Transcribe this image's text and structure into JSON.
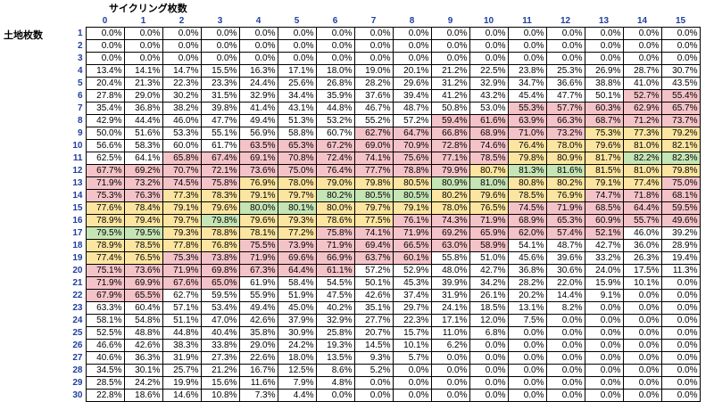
{
  "header": {
    "cycling_title": "サイクリング枚数",
    "land_title": "土地枚数"
  },
  "columns": [
    "0",
    "1",
    "2",
    "3",
    "4",
    "5",
    "6",
    "7",
    "8",
    "9",
    "10",
    "11",
    "12",
    "13",
    "14",
    "15"
  ],
  "rows": [
    {
      "label": "1",
      "values": [
        "0.0%",
        "0.0%",
        "0.0%",
        "0.0%",
        "0.0%",
        "0.0%",
        "0.0%",
        "0.0%",
        "0.0%",
        "0.0%",
        "0.0%",
        "0.0%",
        "0.0%",
        "0.0%",
        "0.0%",
        "0.0%"
      ]
    },
    {
      "label": "2",
      "values": [
        "0.0%",
        "0.0%",
        "0.0%",
        "0.0%",
        "0.0%",
        "0.0%",
        "0.0%",
        "0.0%",
        "0.0%",
        "0.0%",
        "0.0%",
        "0.0%",
        "0.0%",
        "0.0%",
        "0.0%",
        "0.0%"
      ]
    },
    {
      "label": "3",
      "values": [
        "0.0%",
        "0.0%",
        "0.0%",
        "0.0%",
        "0.0%",
        "0.0%",
        "0.0%",
        "0.0%",
        "0.0%",
        "0.0%",
        "0.0%",
        "0.0%",
        "0.0%",
        "0.0%",
        "0.0%",
        "0.0%"
      ]
    },
    {
      "label": "4",
      "values": [
        "13.4%",
        "14.1%",
        "14.7%",
        "15.5%",
        "16.3%",
        "17.1%",
        "18.0%",
        "19.0%",
        "20.1%",
        "21.2%",
        "22.5%",
        "23.8%",
        "25.3%",
        "26.9%",
        "28.7%",
        "30.7%"
      ]
    },
    {
      "label": "5",
      "values": [
        "20.4%",
        "21.3%",
        "22.3%",
        "23.3%",
        "24.4%",
        "25.6%",
        "26.8%",
        "28.2%",
        "29.6%",
        "31.2%",
        "32.9%",
        "34.7%",
        "36.6%",
        "38.8%",
        "41.0%",
        "43.5%"
      ]
    },
    {
      "label": "6",
      "values": [
        "27.8%",
        "29.0%",
        "30.2%",
        "31.5%",
        "32.9%",
        "34.4%",
        "35.9%",
        "37.6%",
        "39.4%",
        "41.2%",
        "43.2%",
        "45.4%",
        "47.7%",
        "50.1%",
        "52.7%",
        "55.4%"
      ]
    },
    {
      "label": "7",
      "values": [
        "35.4%",
        "36.8%",
        "38.2%",
        "39.8%",
        "41.4%",
        "43.1%",
        "44.8%",
        "46.7%",
        "48.7%",
        "50.8%",
        "53.0%",
        "55.3%",
        "57.7%",
        "60.3%",
        "62.9%",
        "65.7%"
      ]
    },
    {
      "label": "8",
      "values": [
        "42.9%",
        "44.4%",
        "46.0%",
        "47.7%",
        "49.4%",
        "51.3%",
        "53.2%",
        "55.2%",
        "57.2%",
        "59.4%",
        "61.6%",
        "63.9%",
        "66.3%",
        "68.7%",
        "71.2%",
        "73.7%"
      ]
    },
    {
      "label": "9",
      "values": [
        "50.0%",
        "51.6%",
        "53.3%",
        "55.1%",
        "56.9%",
        "58.8%",
        "60.7%",
        "62.7%",
        "64.7%",
        "66.8%",
        "68.9%",
        "71.0%",
        "73.2%",
        "75.3%",
        "77.3%",
        "79.2%"
      ]
    },
    {
      "label": "10",
      "values": [
        "56.6%",
        "58.3%",
        "60.0%",
        "61.7%",
        "63.5%",
        "65.3%",
        "67.2%",
        "69.0%",
        "70.9%",
        "72.8%",
        "74.6%",
        "76.4%",
        "78.0%",
        "79.6%",
        "81.0%",
        "82.1%"
      ]
    },
    {
      "label": "11",
      "values": [
        "62.5%",
        "64.1%",
        "65.8%",
        "67.4%",
        "69.1%",
        "70.8%",
        "72.4%",
        "74.1%",
        "75.6%",
        "77.1%",
        "78.5%",
        "79.8%",
        "80.9%",
        "81.7%",
        "82.2%",
        "82.3%"
      ]
    },
    {
      "label": "12",
      "values": [
        "67.7%",
        "69.2%",
        "70.7%",
        "72.1%",
        "73.6%",
        "75.0%",
        "76.4%",
        "77.7%",
        "78.8%",
        "79.9%",
        "80.7%",
        "81.3%",
        "81.6%",
        "81.5%",
        "81.0%",
        "79.8%"
      ]
    },
    {
      "label": "13",
      "values": [
        "71.9%",
        "73.2%",
        "74.5%",
        "75.8%",
        "76.9%",
        "78.0%",
        "79.0%",
        "79.8%",
        "80.5%",
        "80.9%",
        "81.0%",
        "80.8%",
        "80.2%",
        "79.1%",
        "77.4%",
        "75.0%"
      ]
    },
    {
      "label": "14",
      "values": [
        "75.3%",
        "76.3%",
        "77.3%",
        "78.3%",
        "79.1%",
        "79.7%",
        "80.2%",
        "80.5%",
        "80.5%",
        "80.2%",
        "79.6%",
        "78.5%",
        "76.9%",
        "74.7%",
        "71.8%",
        "68.1%"
      ]
    },
    {
      "label": "15",
      "values": [
        "77.6%",
        "78.4%",
        "79.1%",
        "79.6%",
        "80.0%",
        "80.1%",
        "80.0%",
        "79.7%",
        "79.1%",
        "78.0%",
        "76.5%",
        "74.5%",
        "71.9%",
        "68.5%",
        "64.4%",
        "59.5%"
      ]
    },
    {
      "label": "16",
      "values": [
        "78.9%",
        "79.4%",
        "79.7%",
        "79.8%",
        "79.6%",
        "79.3%",
        "78.6%",
        "77.5%",
        "76.1%",
        "74.3%",
        "71.9%",
        "68.9%",
        "65.3%",
        "60.9%",
        "55.7%",
        "49.6%"
      ]
    },
    {
      "label": "17",
      "values": [
        "79.5%",
        "79.5%",
        "79.3%",
        "78.8%",
        "78.1%",
        "77.2%",
        "75.8%",
        "74.1%",
        "71.9%",
        "69.2%",
        "65.9%",
        "62.0%",
        "57.4%",
        "52.1%",
        "46.0%",
        "39.2%"
      ]
    },
    {
      "label": "18",
      "values": [
        "78.9%",
        "78.5%",
        "77.8%",
        "76.8%",
        "75.5%",
        "73.9%",
        "71.9%",
        "69.4%",
        "66.5%",
        "63.0%",
        "58.9%",
        "54.1%",
        "48.7%",
        "42.7%",
        "36.0%",
        "28.9%"
      ]
    },
    {
      "label": "19",
      "values": [
        "77.4%",
        "76.5%",
        "75.3%",
        "73.8%",
        "71.9%",
        "69.6%",
        "66.9%",
        "63.7%",
        "60.1%",
        "55.8%",
        "51.0%",
        "45.6%",
        "39.6%",
        "33.2%",
        "26.3%",
        "19.4%"
      ]
    },
    {
      "label": "20",
      "values": [
        "75.1%",
        "73.6%",
        "71.9%",
        "69.8%",
        "67.3%",
        "64.4%",
        "61.1%",
        "57.2%",
        "52.9%",
        "48.0%",
        "42.7%",
        "36.8%",
        "30.6%",
        "24.0%",
        "17.5%",
        "11.3%"
      ]
    },
    {
      "label": "21",
      "values": [
        "71.9%",
        "69.9%",
        "67.6%",
        "65.0%",
        "61.9%",
        "58.4%",
        "54.5%",
        "50.1%",
        "45.3%",
        "39.9%",
        "34.2%",
        "28.2%",
        "22.0%",
        "15.9%",
        "10.1%",
        "0.0%"
      ]
    },
    {
      "label": "22",
      "values": [
        "67.9%",
        "65.5%",
        "62.7%",
        "59.5%",
        "55.9%",
        "51.9%",
        "47.5%",
        "42.6%",
        "37.4%",
        "31.9%",
        "26.1%",
        "20.2%",
        "14.4%",
        "9.1%",
        "0.0%",
        "0.0%"
      ]
    },
    {
      "label": "23",
      "values": [
        "63.3%",
        "60.4%",
        "57.1%",
        "53.4%",
        "49.4%",
        "45.0%",
        "40.2%",
        "35.1%",
        "29.7%",
        "24.1%",
        "18.5%",
        "13.1%",
        "8.2%",
        "0.0%",
        "0.0%",
        "0.0%"
      ]
    },
    {
      "label": "24",
      "values": [
        "58.1%",
        "54.8%",
        "51.1%",
        "47.0%",
        "42.6%",
        "37.9%",
        "32.9%",
        "27.7%",
        "22.3%",
        "17.1%",
        "12.0%",
        "7.5%",
        "0.0%",
        "0.0%",
        "0.0%",
        "0.0%"
      ]
    },
    {
      "label": "25",
      "values": [
        "52.5%",
        "48.8%",
        "44.8%",
        "40.4%",
        "35.8%",
        "30.9%",
        "25.8%",
        "20.7%",
        "15.7%",
        "11.0%",
        "6.8%",
        "0.0%",
        "0.0%",
        "0.0%",
        "0.0%",
        "0.0%"
      ]
    },
    {
      "label": "26",
      "values": [
        "46.6%",
        "42.6%",
        "38.3%",
        "33.8%",
        "29.0%",
        "24.2%",
        "19.3%",
        "14.5%",
        "10.1%",
        "6.2%",
        "0.0%",
        "0.0%",
        "0.0%",
        "0.0%",
        "0.0%",
        "0.0%"
      ]
    },
    {
      "label": "27",
      "values": [
        "40.6%",
        "36.3%",
        "31.9%",
        "27.3%",
        "22.6%",
        "18.0%",
        "13.5%",
        "9.3%",
        "5.7%",
        "0.0%",
        "0.0%",
        "0.0%",
        "0.0%",
        "0.0%",
        "0.0%",
        "0.0%"
      ]
    },
    {
      "label": "28",
      "values": [
        "34.5%",
        "30.1%",
        "25.7%",
        "21.2%",
        "16.7%",
        "12.5%",
        "8.6%",
        "5.2%",
        "0.0%",
        "0.0%",
        "0.0%",
        "0.0%",
        "0.0%",
        "0.0%",
        "0.0%",
        "0.0%"
      ]
    },
    {
      "label": "29",
      "values": [
        "28.5%",
        "24.2%",
        "19.9%",
        "15.6%",
        "11.6%",
        "7.9%",
        "4.8%",
        "0.0%",
        "0.0%",
        "0.0%",
        "0.0%",
        "0.0%",
        "0.0%",
        "0.0%",
        "0.0%",
        "0.0%"
      ]
    },
    {
      "label": "30",
      "values": [
        "22.8%",
        "18.6%",
        "14.6%",
        "10.8%",
        "7.3%",
        "4.4%",
        "0.0%",
        "0.0%",
        "0.0%",
        "0.0%",
        "0.0%",
        "0.0%",
        "0.0%",
        "0.0%",
        "0.0%",
        "0.0%"
      ]
    }
  ],
  "highlights": [
    {
      "row": "6",
      "col": "14",
      "color": "pink"
    },
    {
      "row": "6",
      "col": "15",
      "color": "pink"
    },
    {
      "row": "7",
      "cols": [
        "11",
        "12",
        "13",
        "14",
        "15"
      ],
      "color": "pink"
    },
    {
      "row": "8",
      "cols": [
        "9",
        "10",
        "11",
        "12",
        "13",
        "14",
        "15"
      ],
      "color": "pink"
    },
    {
      "row": "9",
      "cols": [
        "7",
        "8",
        "9",
        "10",
        "11",
        "12"
      ],
      "color": "pink"
    },
    {
      "row": "9",
      "cols": [
        "13",
        "14",
        "15"
      ],
      "color": "yellow"
    },
    {
      "row": "10",
      "cols": [
        "4",
        "5",
        "6",
        "7",
        "8",
        "9",
        "10"
      ],
      "color": "pink"
    },
    {
      "row": "10",
      "cols": [
        "11",
        "12",
        "13",
        "14",
        "15"
      ],
      "color": "yellow"
    },
    {
      "row": "11",
      "cols": [
        "2",
        "3",
        "4",
        "5",
        "6",
        "7",
        "8",
        "9",
        "10"
      ],
      "color": "pink"
    },
    {
      "row": "11",
      "cols": [
        "11",
        "12",
        "13"
      ],
      "color": "yellow"
    },
    {
      "row": "11",
      "cols": [
        "14",
        "15"
      ],
      "color": "green"
    }
  ],
  "colors": {
    "pink": "#f4c3c8",
    "yellow": "#fce5a0",
    "green": "#c6e5b5",
    "header_text": "#1f3f9f"
  }
}
